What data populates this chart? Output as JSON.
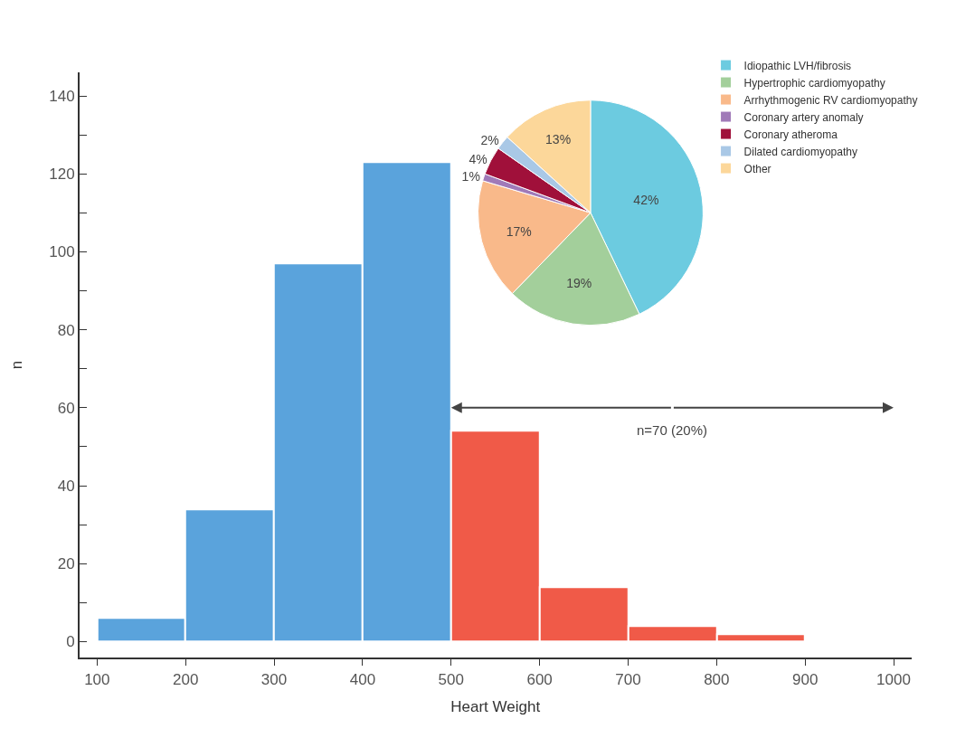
{
  "chart_data": [
    {
      "type": "histogram",
      "xlabel": "Heart Weight",
      "ylabel": "n",
      "bins": [
        100,
        200,
        300,
        400,
        500,
        600,
        700,
        800,
        900
      ],
      "values": [
        6,
        34,
        97,
        123,
        54,
        14,
        4,
        2
      ],
      "colors": [
        "#5aa3dc",
        "#5aa3dc",
        "#5aa3dc",
        "#5aa3dc",
        "#f05a48",
        "#f05a48",
        "#f05a48",
        "#f05a48"
      ],
      "xlim": [
        80,
        1020
      ],
      "ylim": [
        -4,
        146
      ],
      "xticks": [
        100,
        200,
        300,
        400,
        500,
        600,
        700,
        800,
        900,
        1000
      ],
      "yticks": [
        0,
        {
          "value": 10,
          "label": null
        },
        20,
        {
          "value": 30,
          "label": null
        },
        40,
        {
          "value": 50,
          "label": null
        },
        60,
        {
          "value": 70,
          "label": null
        },
        80,
        {
          "value": 90,
          "label": null
        },
        100,
        {
          "value": 110,
          "label": null
        },
        120,
        {
          "value": 130,
          "label": null
        },
        140
      ],
      "annotations": [
        {
          "text": "n=70 (20%)",
          "x": 500,
          "y": 60
        }
      ]
    },
    {
      "type": "pie",
      "categories": [
        "Idiopathic LVH/fibrosis",
        "Hypertrophic cardiomyopathy",
        "Arrhythmogenic RV cardiomyopathy",
        "Coronary artery anomaly",
        "Coronary atheroma",
        "Dilated cardiomyopathy",
        "Other"
      ],
      "values": [
        42,
        19,
        17,
        1,
        4,
        2,
        13
      ],
      "value_labels": [
        "42%",
        "19%",
        "17%",
        "1%",
        "4%",
        "2%",
        "13%"
      ],
      "colors": [
        "#6ccbe0",
        "#a3cf9b",
        "#f9b98a",
        "#a07ab8",
        "#a0103a",
        "#a9c8e6",
        "#fcd79a"
      ],
      "legend": "right"
    }
  ]
}
